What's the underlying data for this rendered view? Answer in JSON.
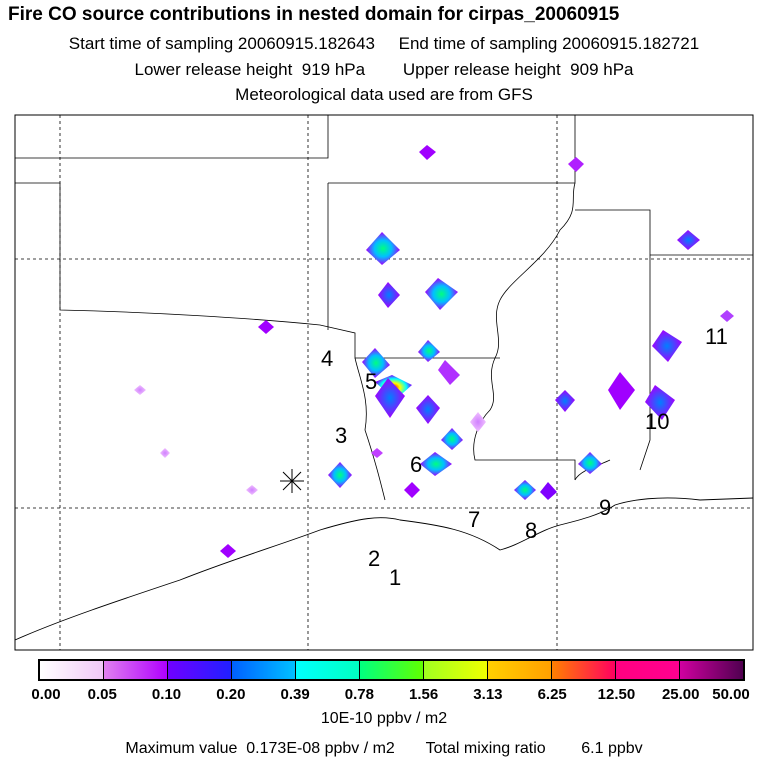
{
  "header": {
    "title": "Fire CO source contributions in nested domain for cirpas_20060915",
    "sampling": "Start time of sampling 20060915.182643     End time of sampling 20060915.182721",
    "release": "Lower release height  919 hPa        Upper release height  909 hPa",
    "met": "Meteorological data used are from GFS"
  },
  "map": {
    "source_labels": [
      "1",
      "2",
      "3",
      "4",
      "5",
      "6",
      "7",
      "8",
      "9",
      "10",
      "11"
    ],
    "receptor_icon": "asterisk-icon"
  },
  "colorbar": {
    "ticks": [
      "0.00",
      "0.05",
      "0.10",
      "0.20",
      "0.39",
      "0.78",
      "1.56",
      "3.13",
      "6.25",
      "12.50",
      "25.00",
      "50.00"
    ],
    "segments": [
      [
        "#ffffff",
        "#f0c8f8"
      ],
      [
        "#e080f0",
        "#b000ff"
      ],
      [
        "#7000ff",
        "#2020ff"
      ],
      [
        "#0060ff",
        "#00c0ff"
      ],
      [
        "#00ffff",
        "#00ffc0"
      ],
      [
        "#00ff80",
        "#60ff00"
      ],
      [
        "#a0ff20",
        "#f0ff00"
      ],
      [
        "#ffd000",
        "#ffa000"
      ],
      [
        "#ff8000",
        "#ff0060"
      ],
      [
        "#ff0080",
        "#ff0090"
      ],
      [
        "#d000a0",
        "#500050"
      ]
    ],
    "units": "10E-10 ppbv / m2"
  },
  "footer": "Maximum value  0.173E-08 ppbv / m2       Total mixing ratio        6.1 ppbv"
}
